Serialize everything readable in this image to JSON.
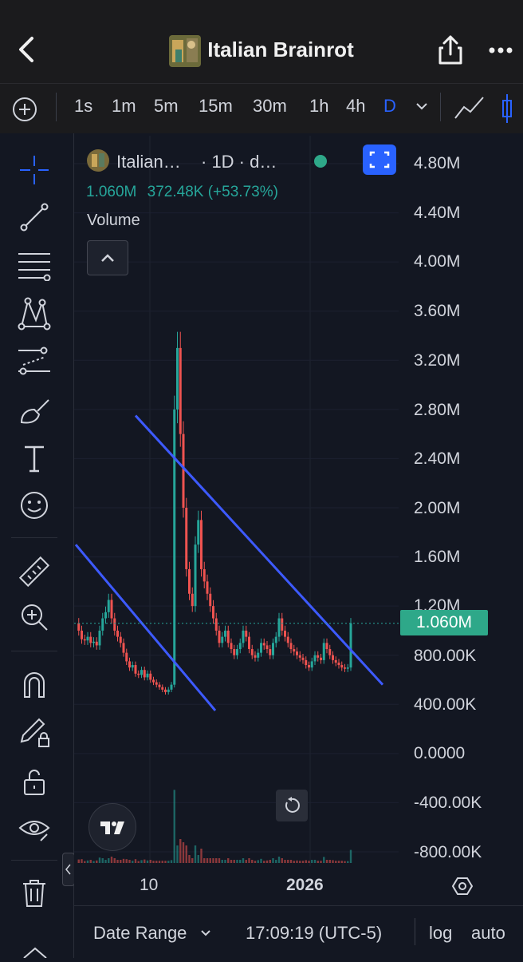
{
  "header": {
    "title": "Italian Brainrot",
    "back_icon": "chevron-left-icon",
    "share_icon": "share-icon",
    "more_icon": "more-horizontal-icon"
  },
  "timeframes": {
    "items": [
      "1s",
      "1m",
      "5m",
      "15m",
      "30m",
      "1h",
      "4h",
      "D"
    ],
    "active": "D"
  },
  "legend": {
    "symbol": "Italian…",
    "meta": "· 1D · d…",
    "close": "1.060M",
    "change": "372.48K",
    "change_pct": "(+53.73%)",
    "indicator": "Volume"
  },
  "y_axis": {
    "ticks": [
      "4.80M",
      "4.40M",
      "4.00M",
      "3.60M",
      "3.20M",
      "2.80M",
      "2.40M",
      "2.00M",
      "1.60M",
      "1.20M",
      "800.00K",
      "400.00K",
      "0.0000",
      "-400.00K",
      "-800.00K"
    ],
    "last_price": "1.060M"
  },
  "x_axis": {
    "ticks": [
      "10",
      "2026"
    ]
  },
  "footer": {
    "date_range": "Date Range",
    "clock": "17:09:19 (UTC-5)",
    "log": "log",
    "auto": "auto"
  },
  "colors": {
    "up": "#26a69a",
    "down": "#ef5350",
    "accent": "#2962ff",
    "trendline": "#3d5afe"
  },
  "chart_data": {
    "type": "candlestick",
    "y_unit": "market cap",
    "ylim": [
      -800000,
      4800000
    ],
    "last": 1060000,
    "closes": [
      1060000,
      1000000,
      930000,
      920000,
      950000,
      900000,
      910000,
      880000,
      1000000,
      1100000,
      1150000,
      1250000,
      1100000,
      1000000,
      950000,
      900000,
      820000,
      750000,
      700000,
      720000,
      650000,
      640000,
      680000,
      620000,
      650000,
      600000,
      580000,
      560000,
      540000,
      520000,
      500000,
      520000,
      560000,
      2800000,
      3300000,
      2600000,
      2000000,
      1500000,
      1300000,
      1200000,
      1700000,
      1900000,
      1500000,
      1400000,
      1300000,
      1200000,
      1100000,
      1000000,
      900000,
      950000,
      1000000,
      900000,
      850000,
      800000,
      850000,
      900000,
      1000000,
      950000,
      850000,
      800000,
      780000,
      820000,
      900000,
      880000,
      850000,
      800000,
      900000,
      950000,
      1100000,
      1000000,
      950000,
      900000,
      850000,
      830000,
      800000,
      780000,
      760000,
      720000,
      700000,
      750000,
      800000,
      780000,
      760000,
      900000,
      850000,
      800000,
      760000,
      740000,
      720000,
      700000,
      690000,
      700000,
      1060000
    ],
    "trendlines": [
      {
        "from_index": 0,
        "from_value": 1700000,
        "to_index": 36,
        "to_value": 350000
      },
      {
        "from_index": 20,
        "from_value": 2750000,
        "to_index": 92,
        "to_value": 560000
      }
    ],
    "volume_series": "Volume"
  }
}
